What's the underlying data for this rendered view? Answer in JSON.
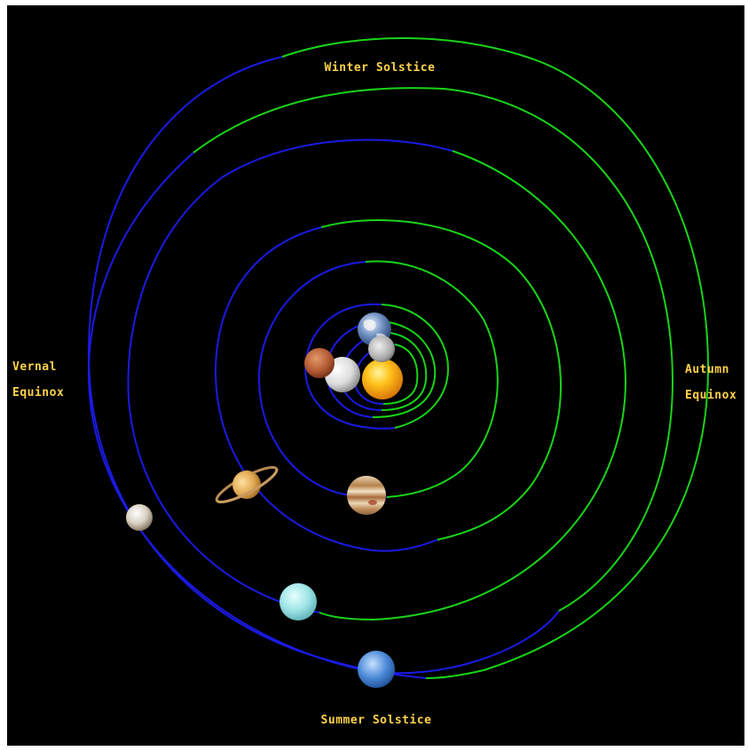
{
  "colors": {
    "background": "#000000",
    "frame": "#ffffff",
    "orbit_blue": "#1a1ae6",
    "orbit_green": "#19d319",
    "label": "#ffd24a"
  },
  "labels": {
    "winter_solstice": "Winter Solstice",
    "summer_solstice": "Summer Solstice",
    "vernal_line1": "Vernal",
    "vernal_line2": "Equinox",
    "autumn_line1": "Autumn",
    "autumn_line2": "Equinox"
  },
  "bodies": [
    {
      "name": "sun",
      "icon": "sun-icon"
    },
    {
      "name": "mercury",
      "icon": "mercury-icon"
    },
    {
      "name": "venus",
      "icon": "venus-icon"
    },
    {
      "name": "earth",
      "icon": "earth-icon"
    },
    {
      "name": "moon",
      "icon": "moon-icon"
    },
    {
      "name": "mars",
      "icon": "mars-icon"
    },
    {
      "name": "jupiter",
      "icon": "jupiter-icon"
    },
    {
      "name": "saturn",
      "icon": "saturn-icon"
    },
    {
      "name": "uranus",
      "icon": "uranus-icon"
    },
    {
      "name": "neptune",
      "icon": "neptune-icon"
    },
    {
      "name": "pluto",
      "icon": "pluto-icon"
    }
  ]
}
